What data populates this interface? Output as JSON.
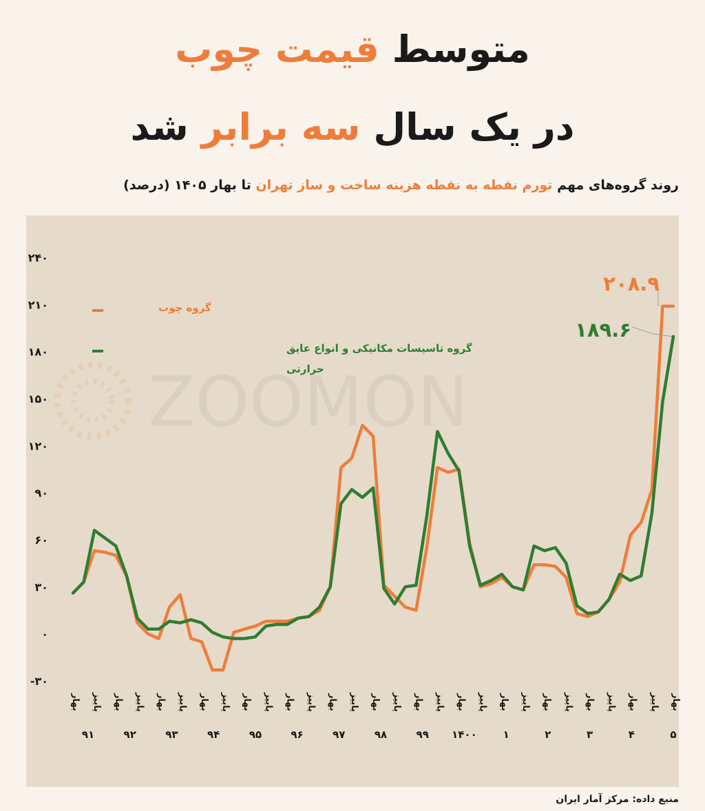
{
  "title": {
    "line1_prefix": "متوسط",
    "line1_highlight": "قیمت چوب",
    "line2_prefix": "در یک سال",
    "line2_highlight": "سه برابر",
    "line2_suffix": "شد"
  },
  "subtitle": {
    "part1": "روند گروه‌های مهم",
    "part2_highlight": "تورم نقطه به نقطه هزینه ساخت و ساز تهران",
    "part3": "تا بهار ۱۴۰۵ (درصد)"
  },
  "source": "منبع داده: مرکز آمار ایران",
  "watermark": "ZOOMON",
  "colors": {
    "orange": "#ee7d3b",
    "green": "#2f7d32",
    "background": "#f9f3ec",
    "panel": "#e6dbca"
  },
  "chart_data": {
    "type": "line",
    "ylim": [
      -30,
      240
    ],
    "yticks": [
      -30,
      0,
      30,
      60,
      90,
      120,
      150,
      180,
      210,
      240
    ],
    "ytick_labels": [
      "-۳۰",
      "۰",
      "۳۰",
      "۶۰",
      "۹۰",
      "۱۲۰",
      "۱۵۰",
      "۱۸۰",
      "۲۱۰",
      "۲۴۰"
    ],
    "season_labels": [
      "بهار",
      "پاییز"
    ],
    "year_labels": [
      "۹۱",
      "۹۲",
      "۹۳",
      "۹۴",
      "۹۵",
      "۹۶",
      "۹۷",
      "۹۸",
      "۹۹",
      "۱۴۰۰",
      "۱",
      "۲",
      "۳",
      "۴",
      "۵"
    ],
    "series": [
      {
        "name": "گروه چوب",
        "color": "#ee7d3b",
        "end_label": "۲۰۸.۹",
        "values": [
          26,
          33,
          53,
          52,
          50,
          37,
          7,
          0,
          -3,
          17,
          25,
          -3,
          -5,
          -23,
          -23,
          1,
          3,
          5,
          8,
          8,
          8,
          10,
          11,
          15,
          30,
          106,
          112,
          133,
          126,
          31,
          24,
          17,
          15,
          55,
          106,
          103,
          105,
          58,
          30,
          32,
          36,
          30,
          28,
          44,
          44,
          43,
          36,
          13,
          11,
          14,
          22,
          33,
          63,
          71,
          92,
          208.9,
          208.9
        ],
        "end_value": 208.9
      },
      {
        "name": "گروه تاسیسات مکانیکی و انواع عایق حرارتی",
        "color": "#2f7d32",
        "values": [
          26,
          33,
          66,
          61,
          56,
          37,
          10,
          3,
          3,
          8,
          7,
          9,
          7,
          1,
          -2,
          -3,
          -3,
          -2,
          5,
          6,
          6,
          10,
          11,
          17,
          30,
          83,
          92,
          87,
          93,
          29,
          19,
          30,
          31,
          75,
          129,
          115,
          104,
          56,
          31,
          34,
          38,
          30,
          28,
          56,
          53,
          55,
          45,
          18,
          13,
          14,
          22,
          38,
          34,
          37,
          77,
          148,
          189.6
        ],
        "end_value": 189.6
      }
    ]
  }
}
